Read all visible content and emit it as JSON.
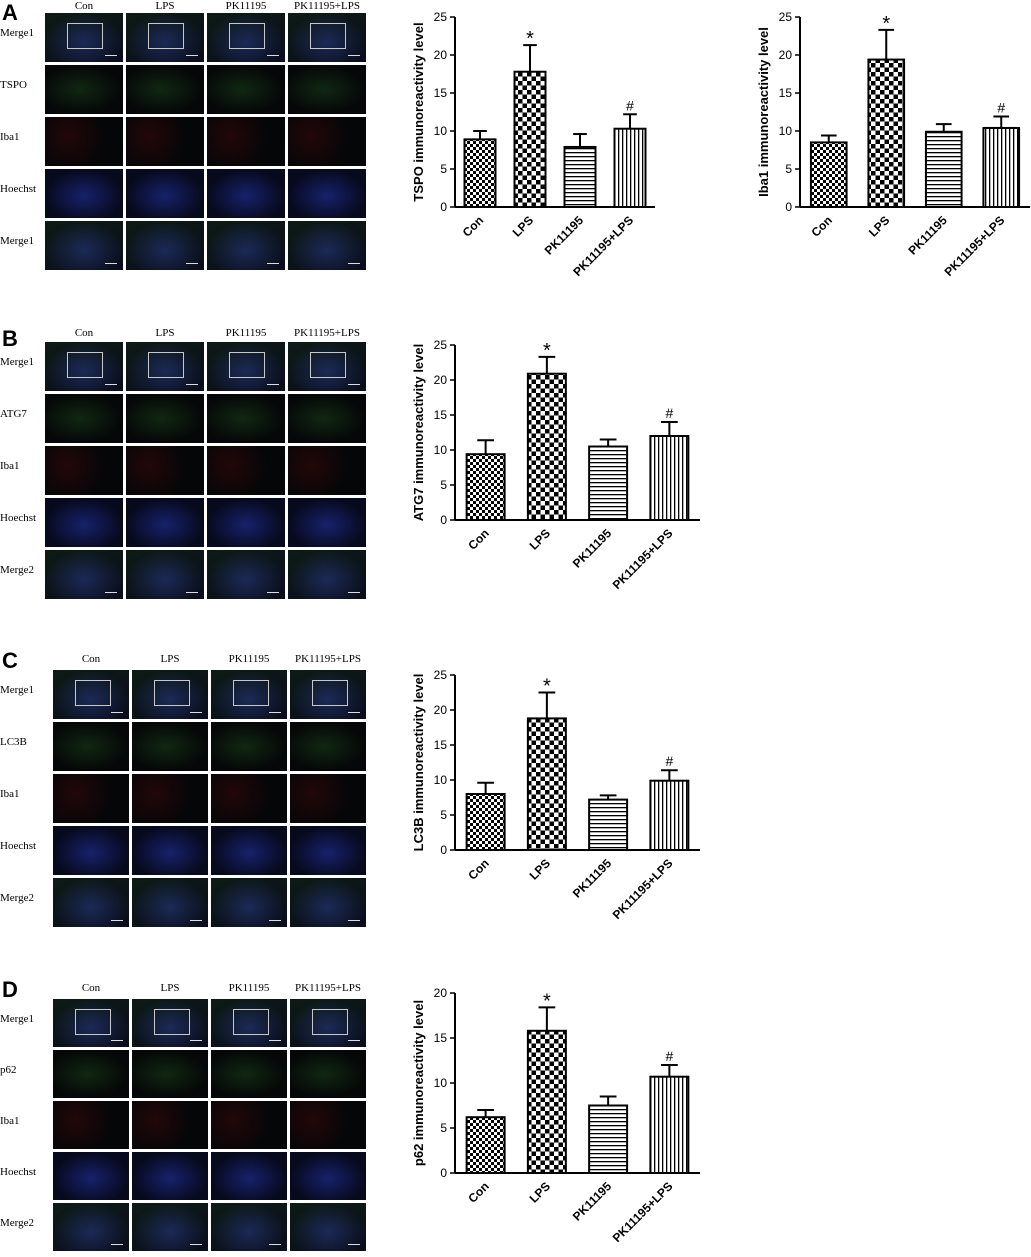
{
  "columns": [
    "Con",
    "LPS",
    "PK11195",
    "PK11195+LPS"
  ],
  "panels": [
    {
      "letter": "A",
      "rows": [
        "Merge1",
        "TSPO",
        "Iba1",
        "Hoechst",
        "Merge1"
      ],
      "row_tints": [
        "merge",
        "green",
        "red",
        "blue",
        "merge"
      ]
    },
    {
      "letter": "B",
      "rows": [
        "Merge1",
        "ATG7",
        "Iba1",
        "Hoechst",
        "Merge2"
      ],
      "row_tints": [
        "merge",
        "green",
        "red",
        "blue",
        "merge"
      ]
    },
    {
      "letter": "C",
      "rows": [
        "Merge1",
        "LC3B",
        "Iba1",
        "Hoechst",
        "Merge2"
      ],
      "row_tints": [
        "merge",
        "green",
        "red",
        "blue",
        "merge"
      ]
    },
    {
      "letter": "D",
      "rows": [
        "Merge1",
        "p62",
        "Iba1",
        "Hoechst",
        "Merge2"
      ],
      "row_tints": [
        "merge",
        "green",
        "red",
        "blue",
        "merge"
      ]
    }
  ],
  "colors": {
    "green_signal": "#1e5a1e",
    "red_signal": "#5a0a0a",
    "blue_signal": "#1a2a8a",
    "bar_stroke": "#000000",
    "background": "#ffffff"
  },
  "chart_data": [
    {
      "type": "bar",
      "panel": "A",
      "categories": [
        "Con",
        "LPS",
        "PK11195",
        "PK11195+LPS"
      ],
      "values": [
        8.9,
        17.8,
        7.9,
        10.3
      ],
      "errors": [
        1.1,
        3.5,
        1.7,
        1.9
      ],
      "annotations": [
        "",
        "*",
        "",
        "#"
      ],
      "patterns": [
        "check-small",
        "check-large",
        "horizontal",
        "vertical"
      ],
      "ylabel": "TSPO immunoreactivity level",
      "ylim": [
        0,
        25
      ],
      "yticks": [
        0,
        5,
        10,
        15,
        20,
        25
      ]
    },
    {
      "type": "bar",
      "panel": "A",
      "categories": [
        "Con",
        "LPS",
        "PK11195",
        "PK11195+LPS"
      ],
      "values": [
        8.5,
        19.4,
        9.9,
        10.4
      ],
      "errors": [
        0.9,
        3.9,
        1.0,
        1.5
      ],
      "annotations": [
        "",
        "*",
        "",
        "#"
      ],
      "patterns": [
        "check-small",
        "check-large",
        "horizontal",
        "vertical"
      ],
      "ylabel": "Iba1 immunoreactivity level",
      "ylim": [
        0,
        25
      ],
      "yticks": [
        0,
        5,
        10,
        15,
        20,
        25
      ]
    },
    {
      "type": "bar",
      "panel": "B",
      "categories": [
        "Con",
        "LPS",
        "PK11195",
        "PK11195+LPS"
      ],
      "values": [
        9.4,
        20.9,
        10.5,
        12.0
      ],
      "errors": [
        2.0,
        2.4,
        1.0,
        2.0
      ],
      "annotations": [
        "",
        "*",
        "",
        "#"
      ],
      "patterns": [
        "check-small",
        "check-large",
        "horizontal",
        "vertical"
      ],
      "ylabel": "ATG7 immunoreactivity level",
      "ylim": [
        0,
        25
      ],
      "yticks": [
        0,
        5,
        10,
        15,
        20,
        25
      ]
    },
    {
      "type": "bar",
      "panel": "C",
      "categories": [
        "Con",
        "LPS",
        "PK11195",
        "PK11195+LPS"
      ],
      "values": [
        8.0,
        18.8,
        7.2,
        9.9
      ],
      "errors": [
        1.6,
        3.7,
        0.6,
        1.5
      ],
      "annotations": [
        "",
        "*",
        "",
        "#"
      ],
      "patterns": [
        "check-small",
        "check-large",
        "horizontal",
        "vertical"
      ],
      "ylabel": "LC3B immunoreactivity level",
      "ylim": [
        0,
        25
      ],
      "yticks": [
        0,
        5,
        10,
        15,
        20,
        25
      ]
    },
    {
      "type": "bar",
      "panel": "D",
      "categories": [
        "Con",
        "LPS",
        "PK11195",
        "PK11195+LPS"
      ],
      "values": [
        6.2,
        15.8,
        7.5,
        10.7
      ],
      "errors": [
        0.8,
        2.6,
        1.0,
        1.3
      ],
      "annotations": [
        "",
        "*",
        "",
        "#"
      ],
      "patterns": [
        "check-small",
        "check-large",
        "horizontal",
        "vertical"
      ],
      "ylabel": "p62 immunoreactivity level",
      "ylim": [
        0,
        20
      ],
      "yticks": [
        0,
        5,
        10,
        15,
        20
      ]
    }
  ]
}
